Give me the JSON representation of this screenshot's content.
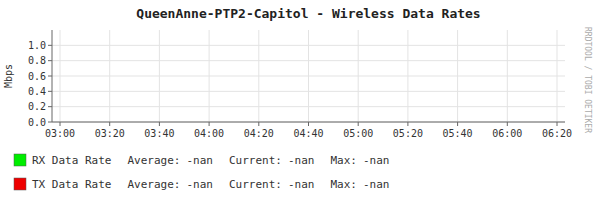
{
  "chart_data": {
    "type": "line",
    "title": "QueenAnne-PTP2-Capitol - Wireless Data Rates",
    "y_label": "Mbps",
    "categories": [
      "03:00",
      "03:20",
      "03:40",
      "04:00",
      "04:20",
      "04:40",
      "05:00",
      "05:20",
      "05:40",
      "06:00",
      "06:20"
    ],
    "series": [
      {
        "name": "RX Data Rate",
        "color": "#00ee00",
        "values": [
          null,
          null,
          null,
          null,
          null,
          null,
          null,
          null,
          null,
          null,
          null
        ],
        "stats": [
          {
            "label": "Average:",
            "value": "-nan"
          },
          {
            "label": "Current:",
            "value": "-nan"
          },
          {
            "label": "Max:",
            "value": "-nan"
          }
        ]
      },
      {
        "name": "TX Data Rate",
        "color": "#ee0000",
        "values": [
          null,
          null,
          null,
          null,
          null,
          null,
          null,
          null,
          null,
          null,
          null
        ],
        "stats": [
          {
            "label": "Average:",
            "value": "-nan"
          },
          {
            "label": "Current:",
            "value": "-nan"
          },
          {
            "label": "Max:",
            "value": "-nan"
          }
        ]
      }
    ],
    "ylim": [
      0,
      1.2
    ],
    "yticks": [
      {
        "value": 0.0,
        "label": "0.0"
      },
      0.2,
      0.4,
      0.6,
      0.8,
      {
        "value": 1.0,
        "label": "1.0"
      }
    ],
    "grid": true,
    "legend": "bottom",
    "annotations": [
      {
        "text": "RRDTOOL / TOBI OETIKER"
      }
    ]
  }
}
